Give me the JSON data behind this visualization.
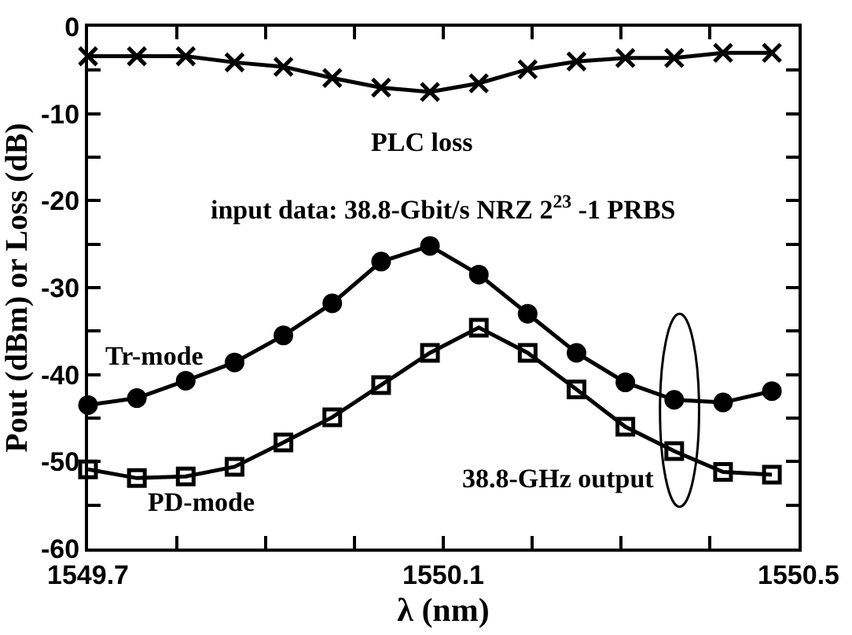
{
  "chart_data": {
    "type": "line",
    "xlabel": "λ (nm)",
    "ylabel": "Pout (dBm) or Loss (dB)",
    "x": [
      1549.7,
      1549.755,
      1549.81,
      1549.865,
      1549.92,
      1549.975,
      1550.03,
      1550.085,
      1550.14,
      1550.195,
      1550.25,
      1550.305,
      1550.36,
      1550.415,
      1550.47
    ],
    "series": [
      {
        "name": "PLC loss",
        "color": "#000000",
        "marker": "cross",
        "values": [
          -3.4,
          -3.4,
          -3.4,
          -4.1,
          -4.6,
          -5.9,
          -7.0,
          -7.5,
          -6.5,
          -4.9,
          -4.0,
          -3.6,
          -3.6,
          -3.0,
          -3.0
        ]
      },
      {
        "name": "Tr-mode",
        "color": "#000000",
        "marker": "circle",
        "values": [
          -43.5,
          -42.7,
          -40.7,
          -38.6,
          -35.5,
          -31.8,
          -27.0,
          -25.2,
          -28.5,
          -33.0,
          -37.5,
          -40.9,
          -42.9,
          -43.2,
          -41.9
        ]
      },
      {
        "name": "PD-mode",
        "color": "#000000",
        "marker": "square",
        "values": [
          -50.9,
          -51.9,
          -51.7,
          -50.6,
          -47.8,
          -44.9,
          -41.2,
          -37.5,
          -34.6,
          -37.5,
          -41.7,
          -46.0,
          -48.8,
          -51.2,
          -51.5
        ]
      }
    ],
    "annotations": [
      "input data: 38.8-Gbit/s NRZ 2$^{23}$ -1 PRBS",
      "38.8-GHz output"
    ],
    "xlim": [
      1549.7,
      1550.5
    ],
    "xticks": [
      1549.7,
      {
        "value": 1549.8,
        "label": null
      },
      {
        "value": 1549.9,
        "label": null
      },
      {
        "value": 1550.0,
        "label": null
      },
      1550.1,
      {
        "value": 1550.2,
        "label": null
      },
      {
        "value": 1550.3,
        "label": null
      },
      {
        "value": 1550.4,
        "label": null
      },
      1550.5
    ],
    "ylim": [
      -60,
      0
    ],
    "yticks": [
      -60,
      {
        "value": -55,
        "label": null
      },
      -50,
      {
        "value": -45,
        "label": null
      },
      -40,
      {
        "value": -35,
        "label": null
      },
      -30,
      {
        "value": -25,
        "label": null
      },
      -20,
      {
        "value": -15,
        "label": null
      },
      -10,
      {
        "value": -5,
        "label": null
      },
      0
    ],
    "legend": false,
    "line_style": "solid"
  }
}
